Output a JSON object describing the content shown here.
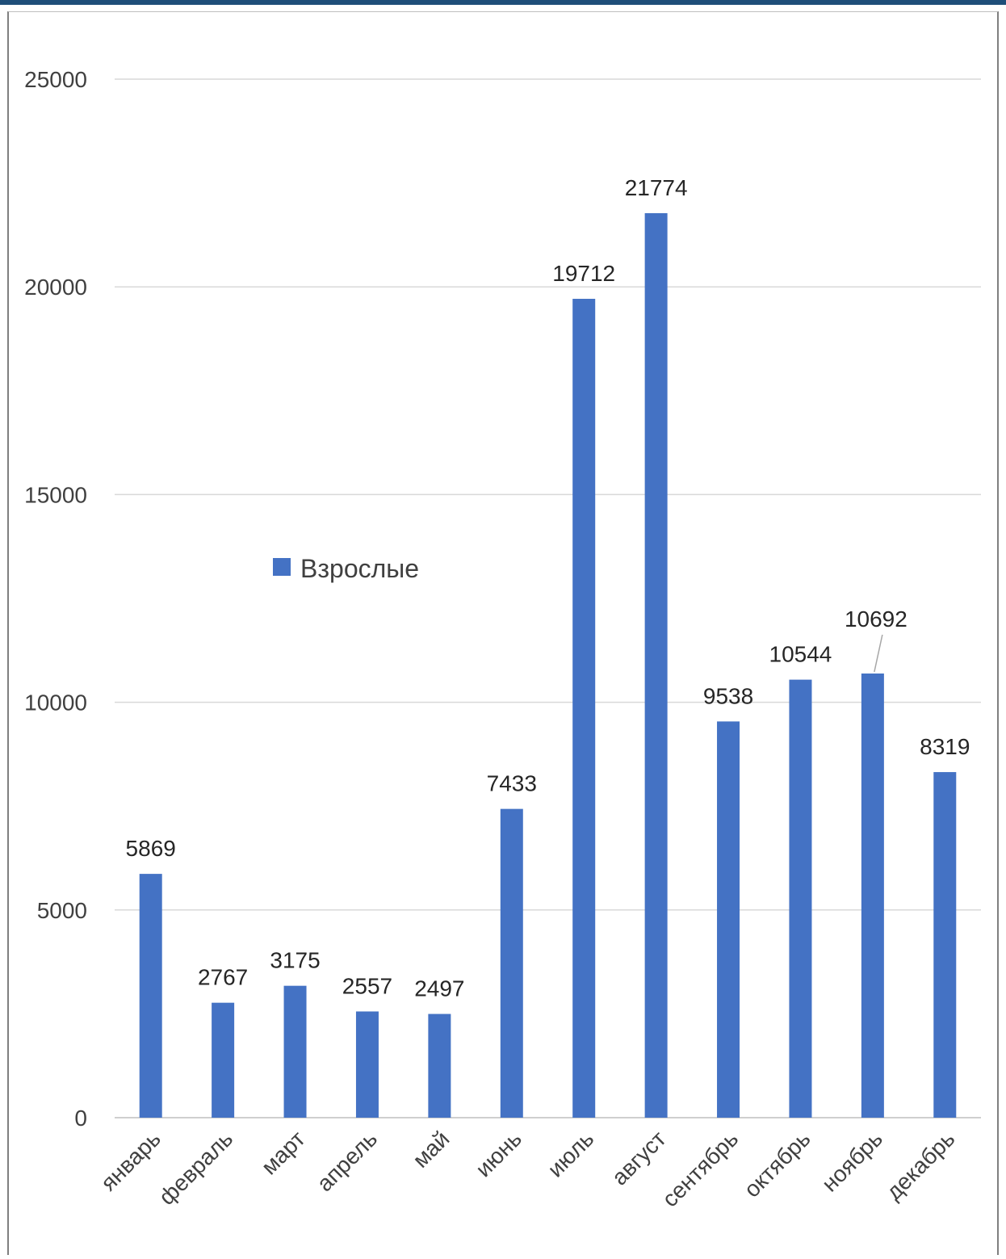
{
  "chart_data": {
    "type": "bar",
    "categories": [
      "январь",
      "февраль",
      "март",
      "апрель",
      "май",
      "июнь",
      "июль",
      "август",
      "сентябрь",
      "октябрь",
      "ноябрь",
      "декабрь"
    ],
    "series": [
      {
        "name": "Взрослые",
        "values": [
          5869,
          2767,
          3175,
          2557,
          2497,
          7433,
          19712,
          21774,
          9538,
          10544,
          10692,
          8319
        ],
        "color": "#4472c4"
      }
    ],
    "ylim": [
      0,
      25000
    ],
    "yticks": [
      0,
      5000,
      10000,
      15000,
      20000,
      25000
    ],
    "grid": true,
    "legend_position": "center-left",
    "title": "",
    "xlabel": "",
    "ylabel": ""
  }
}
